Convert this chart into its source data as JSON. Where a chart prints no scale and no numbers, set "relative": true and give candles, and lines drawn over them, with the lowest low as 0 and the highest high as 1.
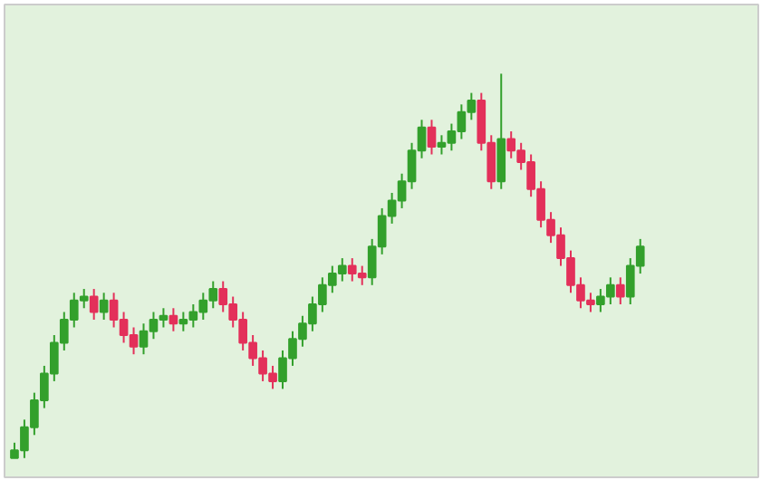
{
  "chart_data": {
    "type": "candlestick",
    "relative": true,
    "categories": [
      null,
      null,
      null,
      null,
      null,
      null,
      null,
      null,
      null,
      null,
      null,
      null,
      null,
      null,
      null,
      null,
      null,
      null,
      null,
      null,
      null,
      null,
      null,
      null,
      null,
      null,
      null,
      null,
      null,
      null,
      null,
      null,
      null,
      null,
      null,
      null,
      null,
      null,
      null,
      null,
      null,
      null,
      null,
      null,
      null,
      null,
      null,
      null,
      null,
      null,
      null,
      null,
      null,
      null,
      null,
      null,
      null,
      null,
      null,
      null,
      null,
      null,
      null,
      null
    ],
    "ohlc": [
      [
        0,
        0.04,
        0,
        0.02
      ],
      [
        0.02,
        0.1,
        0.0,
        0.08
      ],
      [
        0.08,
        0.17,
        0.06,
        0.15
      ],
      [
        0.15,
        0.24,
        0.13,
        0.22
      ],
      [
        0.22,
        0.32,
        0.2,
        0.3
      ],
      [
        0.3,
        0.38,
        0.28,
        0.36
      ],
      [
        0.36,
        0.43,
        0.34,
        0.41
      ],
      [
        0.41,
        0.44,
        0.39,
        0.42
      ],
      [
        0.42,
        0.44,
        0.36,
        0.38
      ],
      [
        0.38,
        0.43,
        0.36,
        0.41
      ],
      [
        0.41,
        0.43,
        0.34,
        0.36
      ],
      [
        0.36,
        0.38,
        0.3,
        0.32
      ],
      [
        0.32,
        0.34,
        0.27,
        0.29
      ],
      [
        0.29,
        0.35,
        0.27,
        0.33
      ],
      [
        0.33,
        0.38,
        0.31,
        0.36
      ],
      [
        0.36,
        0.39,
        0.34,
        0.37
      ],
      [
        0.37,
        0.39,
        0.33,
        0.35
      ],
      [
        0.35,
        0.38,
        0.33,
        0.36
      ],
      [
        0.36,
        0.4,
        0.34,
        0.38
      ],
      [
        0.38,
        0.43,
        0.36,
        0.41
      ],
      [
        0.41,
        0.46,
        0.39,
        0.44
      ],
      [
        0.44,
        0.46,
        0.38,
        0.4
      ],
      [
        0.4,
        0.42,
        0.34,
        0.36
      ],
      [
        0.36,
        0.38,
        0.28,
        0.3
      ],
      [
        0.3,
        0.32,
        0.24,
        0.26
      ],
      [
        0.26,
        0.28,
        0.2,
        0.22
      ],
      [
        0.22,
        0.24,
        0.18,
        0.2
      ],
      [
        0.2,
        0.28,
        0.18,
        0.26
      ],
      [
        0.26,
        0.33,
        0.24,
        0.31
      ],
      [
        0.31,
        0.37,
        0.29,
        0.35
      ],
      [
        0.35,
        0.42,
        0.33,
        0.4
      ],
      [
        0.4,
        0.47,
        0.38,
        0.45
      ],
      [
        0.45,
        0.5,
        0.43,
        0.48
      ],
      [
        0.48,
        0.52,
        0.46,
        0.5
      ],
      [
        0.5,
        0.52,
        0.46,
        0.48
      ],
      [
        0.48,
        0.5,
        0.45,
        0.47
      ],
      [
        0.47,
        0.57,
        0.45,
        0.55
      ],
      [
        0.55,
        0.65,
        0.53,
        0.63
      ],
      [
        0.63,
        0.69,
        0.61,
        0.67
      ],
      [
        0.67,
        0.74,
        0.65,
        0.72
      ],
      [
        0.72,
        0.82,
        0.7,
        0.8
      ],
      [
        0.8,
        0.88,
        0.78,
        0.86
      ],
      [
        0.86,
        0.88,
        0.79,
        0.81
      ],
      [
        0.81,
        0.84,
        0.79,
        0.82
      ],
      [
        0.82,
        0.87,
        0.8,
        0.85
      ],
      [
        0.85,
        0.92,
        0.83,
        0.9
      ],
      [
        0.9,
        0.95,
        0.88,
        0.93
      ],
      [
        0.93,
        0.95,
        0.8,
        0.82
      ],
      [
        0.82,
        0.84,
        0.7,
        0.72
      ],
      [
        0.72,
        1.0,
        0.7,
        0.83
      ],
      [
        0.83,
        0.85,
        0.78,
        0.8
      ],
      [
        0.8,
        0.82,
        0.75,
        0.77
      ],
      [
        0.77,
        0.79,
        0.68,
        0.7
      ],
      [
        0.7,
        0.72,
        0.6,
        0.62
      ],
      [
        0.62,
        0.64,
        0.56,
        0.58
      ],
      [
        0.58,
        0.6,
        0.5,
        0.52
      ],
      [
        0.52,
        0.54,
        0.43,
        0.45
      ],
      [
        0.45,
        0.47,
        0.39,
        0.41
      ],
      [
        0.41,
        0.43,
        0.38,
        0.4
      ],
      [
        0.4,
        0.44,
        0.38,
        0.42
      ],
      [
        0.42,
        0.47,
        0.4,
        0.45
      ],
      [
        0.45,
        0.47,
        0.4,
        0.42
      ],
      [
        0.42,
        0.52,
        0.4,
        0.5
      ],
      [
        0.5,
        0.57,
        0.48,
        0.55
      ]
    ],
    "colors": [
      "#33a02c",
      "#33a02c",
      "#33a02c",
      "#33a02c",
      "#33a02c",
      "#33a02c",
      "#33a02c",
      "#33a02c",
      "#e3305a",
      "#33a02c",
      "#e3305a",
      "#e3305a",
      "#e3305a",
      "#33a02c",
      "#33a02c",
      "#33a02c",
      "#e3305a",
      "#33a02c",
      "#33a02c",
      "#33a02c",
      "#33a02c",
      "#e3305a",
      "#e3305a",
      "#e3305a",
      "#e3305a",
      "#e3305a",
      "#e3305a",
      "#33a02c",
      "#33a02c",
      "#33a02c",
      "#33a02c",
      "#33a02c",
      "#33a02c",
      "#33a02c",
      "#e3305a",
      "#e3305a",
      "#33a02c",
      "#33a02c",
      "#33a02c",
      "#33a02c",
      "#33a02c",
      "#33a02c",
      "#e3305a",
      "#33a02c",
      "#33a02c",
      "#33a02c",
      "#33a02c",
      "#e3305a",
      "#e3305a",
      "#33a02c",
      "#e3305a",
      "#e3305a",
      "#e3305a",
      "#e3305a",
      "#e3305a",
      "#e3305a",
      "#e3305a",
      "#e3305a",
      "#e3305a",
      "#33a02c",
      "#33a02c",
      "#e3305a",
      "#33a02c",
      "#33a02c"
    ],
    "grid": false
  }
}
